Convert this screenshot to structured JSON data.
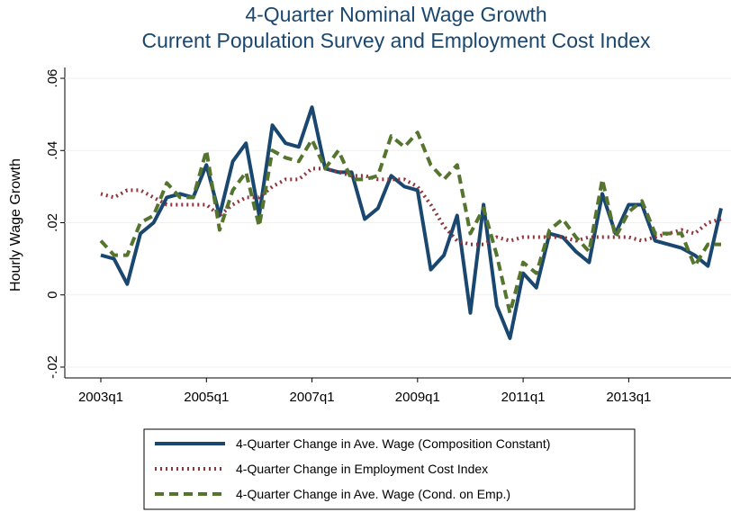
{
  "chart_data": {
    "type": "line",
    "title": "4-Quarter Nominal Wage Growth",
    "subtitle": "Current Population Survey and Employment Cost Index",
    "y_label": "Hourly Wage Growth",
    "categories": [
      "2003q1",
      null,
      null,
      null,
      null,
      null,
      null,
      null,
      "2005q1",
      null,
      null,
      null,
      null,
      null,
      null,
      null,
      "2007q1",
      null,
      null,
      null,
      null,
      null,
      null,
      null,
      "2009q1",
      null,
      null,
      null,
      null,
      null,
      null,
      null,
      "2011q1",
      null,
      null,
      null,
      null,
      null,
      null,
      null,
      "2013q1",
      null,
      null,
      null,
      null,
      null,
      null,
      null
    ],
    "ylim": [
      -0.023,
      0.063
    ],
    "yticks": [
      {
        "value": -0.02,
        "label": "-.02"
      },
      {
        "value": 0,
        "label": "0"
      },
      {
        "value": 0.02,
        "label": ".02"
      },
      {
        "value": 0.04,
        "label": ".04"
      },
      {
        "value": 0.06,
        "label": ".06"
      }
    ],
    "grid": true,
    "series": [
      {
        "name": "4-Quarter Change in Ave. Wage (Composition Constant)",
        "color": "#1a476f",
        "dash": "solid",
        "values": [
          0.011,
          0.01,
          0.003,
          0.017,
          0.02,
          0.027,
          0.028,
          0.027,
          0.036,
          0.022,
          0.037,
          0.042,
          0.022,
          0.047,
          0.042,
          0.041,
          0.052,
          0.035,
          0.034,
          0.034,
          0.021,
          0.024,
          0.033,
          0.03,
          0.029,
          0.007,
          0.011,
          0.022,
          -0.005,
          0.025,
          -0.003,
          -0.012,
          0.006,
          0.002,
          0.017,
          0.016,
          0.012,
          0.009,
          0.028,
          0.017,
          0.025,
          0.025,
          0.015,
          0.014,
          0.013,
          0.011,
          0.008,
          0.024
        ]
      },
      {
        "name": "4-Quarter Change in Employment Cost Index",
        "color": "#90353b",
        "dash": "dot",
        "values": [
          0.028,
          0.027,
          0.029,
          0.029,
          0.027,
          0.025,
          0.025,
          0.025,
          0.025,
          0.022,
          0.025,
          0.027,
          0.027,
          0.03,
          0.032,
          0.032,
          0.035,
          0.035,
          0.034,
          0.033,
          0.033,
          0.032,
          0.032,
          0.032,
          0.03,
          0.025,
          0.019,
          0.015,
          0.014,
          0.014,
          0.016,
          0.015,
          0.016,
          0.016,
          0.016,
          0.016,
          0.015,
          0.016,
          0.016,
          0.016,
          0.016,
          0.015,
          0.016,
          0.017,
          0.018,
          0.017,
          0.02,
          0.021
        ]
      },
      {
        "name": "4-Quarter Change in Ave. Wage (Cond. on Emp.)",
        "color": "#55752f",
        "dash": "dash",
        "values": [
          0.015,
          0.011,
          0.011,
          0.02,
          0.022,
          0.031,
          0.027,
          0.027,
          0.04,
          0.018,
          0.029,
          0.034,
          0.019,
          0.04,
          0.038,
          0.037,
          0.043,
          0.035,
          0.04,
          0.032,
          0.032,
          0.033,
          0.044,
          0.041,
          0.045,
          0.036,
          0.032,
          0.036,
          0.017,
          0.024,
          0.011,
          -0.005,
          0.009,
          0.006,
          0.018,
          0.021,
          0.016,
          0.012,
          0.032,
          0.016,
          0.023,
          0.026,
          0.017,
          0.017,
          0.017,
          0.008,
          0.014,
          0.014
        ]
      }
    ]
  }
}
